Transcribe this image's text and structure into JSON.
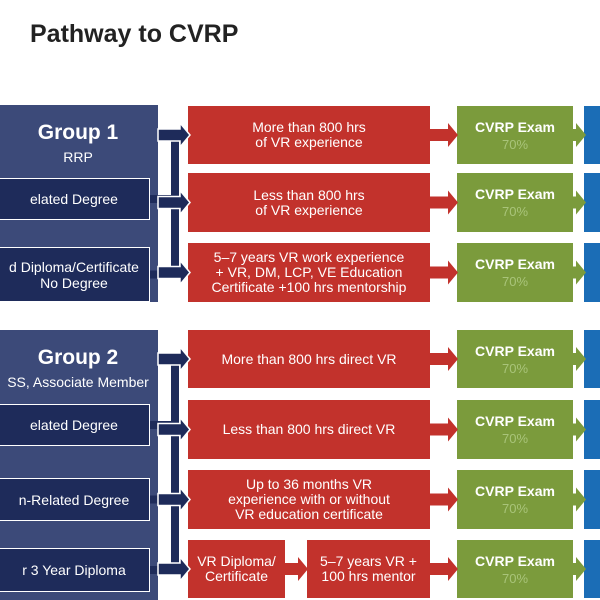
{
  "header": {
    "title": "Pathway to CVRP"
  },
  "groups": [
    {
      "title": "Group 1",
      "subtitle": "RRP",
      "options": [
        [
          "elated Degree"
        ],
        [
          "d Diploma/Certificate",
          "No Degree"
        ]
      ],
      "paths": [
        {
          "steps": [
            [
              "More than 800 hrs",
              "of VR experience"
            ]
          ],
          "exam": "CVRP Exam",
          "score": "70%"
        },
        {
          "steps": [
            [
              "Less than 800 hrs",
              "of VR experience"
            ]
          ],
          "exam": "CVRP Exam",
          "score": "70%"
        },
        {
          "steps": [
            [
              "5–7 years VR work experience",
              "+ VR, DM, LCP, VE Education",
              "Certificate +100 hrs mentorship"
            ]
          ],
          "exam": "CVRP Exam",
          "score": "70%"
        }
      ]
    },
    {
      "title": "Group 2",
      "subtitle": "SS, Associate Member",
      "options": [
        [
          "elated Degree"
        ],
        [
          "n-Related Degree"
        ],
        [
          "r 3 Year Diploma"
        ]
      ],
      "paths": [
        {
          "steps": [
            [
              "More than 800 hrs direct VR"
            ]
          ],
          "exam": "CVRP Exam",
          "score": "70%"
        },
        {
          "steps": [
            [
              "Less than 800 hrs direct VR"
            ]
          ],
          "exam": "CVRP Exam",
          "score": "70%"
        },
        {
          "steps": [
            [
              "Up to 36 months VR",
              "experience with or without",
              "VR education certificate"
            ]
          ],
          "exam": "CVRP Exam",
          "score": "70%"
        },
        {
          "steps": [
            [
              "VR Diploma/",
              "Certificate"
            ],
            [
              "5–7 years VR +",
              "100 hrs mentor"
            ]
          ],
          "exam": "CVRP Exam",
          "score": "70%"
        }
      ]
    }
  ]
}
